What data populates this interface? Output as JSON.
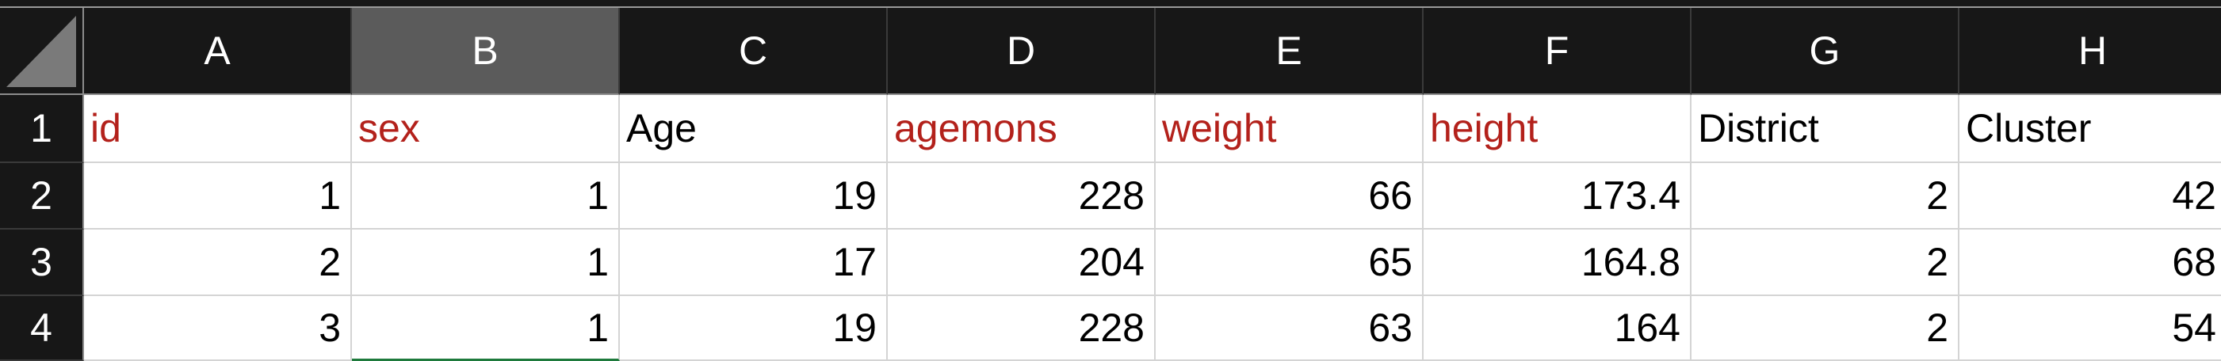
{
  "columns": [
    "A",
    "B",
    "C",
    "D",
    "E",
    "F",
    "G",
    "H"
  ],
  "selected_column": "B",
  "rows": [
    "1",
    "2",
    "3",
    "4"
  ],
  "header_row": {
    "A": "id",
    "B": "sex",
    "C": "Age",
    "D": "agemons",
    "E": "weight",
    "F": "height",
    "G": "District",
    "H": "Cluster"
  },
  "data_rows": [
    {
      "A": "1",
      "B": "1",
      "C": "19",
      "D": "228",
      "E": "66",
      "F": "173.4",
      "G": "2",
      "H": "42"
    },
    {
      "A": "2",
      "B": "1",
      "C": "17",
      "D": "204",
      "E": "65",
      "F": "164.8",
      "G": "2",
      "H": "68"
    },
    {
      "A": "3",
      "B": "1",
      "C": "19",
      "D": "228",
      "E": "63",
      "F": "164",
      "G": "2",
      "H": "54"
    }
  ],
  "colors": {
    "header_bg": "#171717",
    "selected_header_bg": "#5b5b5b",
    "red_text": "#b3211b",
    "selection_border": "#1e7a3c"
  }
}
